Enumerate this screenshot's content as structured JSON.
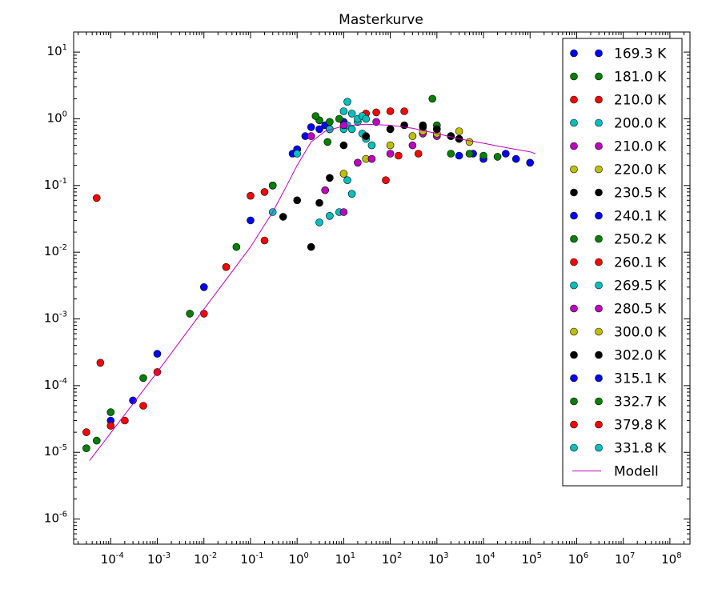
{
  "chart_data": {
    "type": "scatter",
    "title": "Masterkurve",
    "xlabel": "",
    "ylabel": "",
    "x_scale": "log",
    "y_scale": "log",
    "xlim": [
      1.6e-05,
      270000000.0
    ],
    "ylim": [
      4.2e-07,
      20
    ],
    "x_tick_labels": [
      "10-4",
      "10-3",
      "10-2",
      "10-1",
      "100",
      "101",
      "102",
      "103",
      "104",
      "105",
      "106",
      "107",
      "108"
    ],
    "y_tick_labels": [
      "10-6",
      "10-5",
      "10-4",
      "10-3",
      "10-2",
      "10-1",
      "100",
      "101"
    ],
    "grid": false,
    "legend_position": "top-right",
    "series": [
      {
        "name": "169.3 K",
        "color": "#0000ff",
        "points": [
          [
            0.8,
            0.3
          ],
          [
            1.5,
            0.55
          ],
          [
            2,
            0.75
          ],
          [
            3,
            0.7
          ],
          [
            4,
            0.8
          ],
          [
            10,
            0.9
          ]
        ]
      },
      {
        "name": "181.0 K",
        "color": "#007f00",
        "points": [
          [
            5,
            0.9
          ],
          [
            8,
            1.0
          ],
          [
            3,
            0.95
          ],
          [
            2.5,
            1.1
          ],
          [
            4.5,
            0.45
          ]
        ]
      },
      {
        "name": "210.0 K",
        "color": "#ff0000",
        "points": [
          [
            5e-05,
            0.065
          ],
          [
            6e-05,
            0.00022
          ],
          [
            3e-05,
            2e-05
          ],
          [
            0.2,
            0.015
          ]
        ]
      },
      {
        "name": "200.0 K",
        "color": "#00bfbf",
        "points": [
          [
            10,
            0.7
          ],
          [
            12,
            0.8
          ],
          [
            15,
            0.7
          ],
          [
            20,
            0.9
          ],
          [
            25,
            0.6
          ],
          [
            30,
            0.5
          ],
          [
            40,
            0.4
          ]
        ]
      },
      {
        "name": "210.0 K",
        "color": "#bf00bf",
        "points": [
          [
            1,
            0.35
          ],
          [
            2,
            0.55
          ],
          [
            5,
            0.7
          ],
          [
            10,
            0.8
          ],
          [
            50,
            0.9
          ],
          [
            100,
            0.7
          ],
          [
            500,
            0.6
          ],
          [
            1000,
            0.55
          ]
        ]
      },
      {
        "name": "220.0 K",
        "color": "#bfbf00",
        "points": [
          [
            10,
            0.15
          ],
          [
            30,
            0.25
          ],
          [
            100,
            0.4
          ],
          [
            300,
            0.55
          ],
          [
            1000,
            0.7
          ],
          [
            3000,
            0.65
          ]
        ]
      },
      {
        "name": "230.5 K",
        "color": "#000000",
        "points": [
          [
            0.5,
            0.034
          ],
          [
            1,
            0.06
          ],
          [
            2,
            0.012
          ],
          [
            3,
            0.055
          ],
          [
            5,
            0.13
          ],
          [
            10,
            0.4
          ],
          [
            30,
            0.55
          ],
          [
            100,
            0.7
          ],
          [
            500,
            0.8
          ]
        ]
      },
      {
        "name": "240.1 K",
        "color": "#0000ff",
        "points": [
          [
            3000,
            0.28
          ],
          [
            6000,
            0.3
          ],
          [
            10000,
            0.25
          ],
          [
            30000,
            0.3
          ],
          [
            50000,
            0.25
          ],
          [
            100000,
            0.22
          ]
        ]
      },
      {
        "name": "250.2 K",
        "color": "#007f00",
        "points": [
          [
            800,
            2.0
          ],
          [
            1000,
            0.8
          ],
          [
            2000,
            0.3
          ],
          [
            5000,
            0.3
          ],
          [
            10000,
            0.28
          ],
          [
            20000,
            0.27
          ]
        ]
      },
      {
        "name": "260.1 K",
        "color": "#ff0000",
        "points": [
          [
            30,
            1.2
          ],
          [
            50,
            1.25
          ],
          [
            100,
            1.3
          ],
          [
            200,
            1.3
          ],
          [
            80,
            0.12
          ],
          [
            150,
            0.28
          ],
          [
            400,
            0.3
          ]
        ]
      },
      {
        "name": "269.5 K",
        "color": "#00bfbf",
        "points": [
          [
            3,
            0.028
          ],
          [
            5,
            0.035
          ],
          [
            8,
            0.04
          ],
          [
            15,
            0.075
          ],
          [
            12,
            0.12
          ],
          [
            20,
            1.0
          ],
          [
            25,
            1.1
          ]
        ]
      },
      {
        "name": "280.5 K",
        "color": "#bf00bf",
        "points": [
          [
            4,
            0.085
          ],
          [
            10,
            0.04
          ],
          [
            20,
            0.22
          ],
          [
            40,
            0.25
          ],
          [
            100,
            0.3
          ],
          [
            300,
            0.4
          ]
        ]
      },
      {
        "name": "300.0 K",
        "color": "#bfbf00",
        "points": [
          [
            500,
            0.65
          ],
          [
            1000,
            0.6
          ],
          [
            2000,
            0.55
          ],
          [
            3000,
            0.5
          ],
          [
            5000,
            0.45
          ]
        ]
      },
      {
        "name": "302.0 K",
        "color": "#000000",
        "points": [
          [
            200,
            0.8
          ],
          [
            500,
            0.75
          ],
          [
            1000,
            0.7
          ],
          [
            2000,
            0.55
          ],
          [
            3000,
            0.5
          ]
        ]
      },
      {
        "name": "315.1 K",
        "color": "#0000ff",
        "points": [
          [
            0.0001,
            3e-05
          ],
          [
            0.0003,
            6e-05
          ],
          [
            0.001,
            0.0003
          ],
          [
            0.01,
            0.003
          ],
          [
            0.1,
            0.03
          ],
          [
            0.3,
            0.1
          ],
          [
            1,
            0.35
          ]
        ]
      },
      {
        "name": "332.7 K",
        "color": "#007f00",
        "points": [
          [
            3e-05,
            1.15e-05
          ],
          [
            5e-05,
            1.5e-05
          ],
          [
            0.0001,
            4e-05
          ],
          [
            0.0005,
            0.00013
          ],
          [
            0.005,
            0.0012
          ],
          [
            0.05,
            0.012
          ],
          [
            0.3,
            0.1
          ]
        ]
      },
      {
        "name": "379.8 K",
        "color": "#ff0000",
        "points": [
          [
            0.0001,
            2.5e-05
          ],
          [
            0.0002,
            3e-05
          ],
          [
            0.0005,
            5e-05
          ],
          [
            0.001,
            0.00016
          ],
          [
            0.01,
            0.0012
          ],
          [
            0.03,
            0.006
          ],
          [
            0.1,
            0.07
          ],
          [
            0.2,
            0.08
          ]
        ]
      },
      {
        "name": "331.8 K",
        "color": "#00bfbf",
        "points": [
          [
            0.3,
            0.04
          ],
          [
            1,
            0.3
          ],
          [
            5,
            0.7
          ],
          [
            10,
            1.3
          ],
          [
            12,
            1.8
          ],
          [
            15,
            1.2
          ],
          [
            30,
            1.0
          ]
        ]
      },
      {
        "name": "Modell",
        "color": "#bf00bf",
        "type": "line",
        "points": [
          [
            3.5e-05,
            7.5e-06
          ],
          [
            0.001,
            0.00016
          ],
          [
            0.01,
            0.0014
          ],
          [
            0.1,
            0.012
          ],
          [
            0.3,
            0.04
          ],
          [
            0.6,
            0.1
          ],
          [
            1.0,
            0.2
          ],
          [
            2.0,
            0.45
          ],
          [
            4.0,
            0.65
          ],
          [
            10,
            0.78
          ],
          [
            30,
            0.83
          ],
          [
            100,
            0.8
          ],
          [
            300,
            0.72
          ],
          [
            1000,
            0.6
          ],
          [
            3000,
            0.5
          ],
          [
            10000,
            0.43
          ],
          [
            30000,
            0.37
          ],
          [
            100000,
            0.32
          ],
          [
            130000.0,
            0.3
          ]
        ]
      }
    ]
  }
}
